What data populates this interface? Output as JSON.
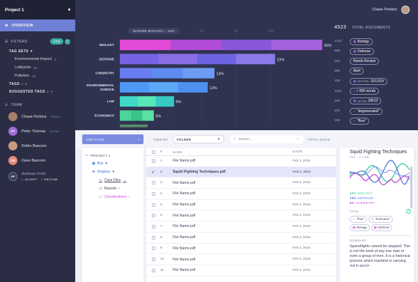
{
  "sidebar": {
    "project": "Project 1",
    "overview": "OVERVIEW",
    "filters": "FILTERS",
    "add": "ADD",
    "tag_sets": "TAG SETS",
    "tag_set_items": [
      {
        "label": "Environmental Impact",
        "count": "8"
      },
      {
        "label": "Lobbyists",
        "count": "23"
      },
      {
        "label": "Pollution",
        "count": "12"
      }
    ],
    "tags": "TAGS",
    "tags_count": "9",
    "suggested_tags": "SUGGESTED TAGS",
    "suggested_count": "9",
    "team": "TEAM",
    "members": [
      {
        "name": "Chase Perkins",
        "role": "ADMIN",
        "initials": "",
        "color": "#a87f69"
      },
      {
        "name": "Peter Thomas",
        "role": "ADMIN",
        "initials": "PT",
        "color": "#9d6cd4"
      },
      {
        "name": "Robin Bascom",
        "role": "",
        "initials": "",
        "color": "#c79a83"
      },
      {
        "name": "Dave Bascom",
        "role": "",
        "initials": "DB",
        "color": "#e3887a"
      }
    ],
    "pending": {
      "name": "Andreas Fruth",
      "initials": "AF",
      "accept": "ACCEPT",
      "decline": "DECLINE"
    }
  },
  "header": {
    "user": "Chase Perkins"
  },
  "chart_data": {
    "type": "bar",
    "breadcrumb": "MARINE BIOLOGY",
    "breadcrumb_pct": "15%",
    "categories": [
      "BIOLOGY",
      "DEFENSE",
      "CHEMISTRY",
      "ENVIRONMENTAL SCIENCE",
      "LAW",
      "ECONOMICS"
    ],
    "values": [
      30,
      23,
      14,
      13,
      8,
      5
    ],
    "value_labels": [
      "30%",
      "23%",
      "14%",
      "13%",
      "8%",
      "5%"
    ],
    "colors": [
      [
        "#e24bd8",
        "#b24cd8",
        "#8a56d9",
        "#a560dc"
      ],
      [
        "#7563e3",
        "#8b6ee6",
        "#6d63e0",
        "#8a79e8"
      ],
      [
        "#6a7cf1",
        "#5e8cf0",
        "#6b9cf2"
      ],
      [
        "#4f98f5",
        "#5aa8f6",
        "#4e8ff0"
      ],
      [
        "#3fd9c8",
        "#58e7b8",
        "#38c9c4"
      ],
      [
        "#4cd49c",
        "#39c58a",
        "#5de0a4"
      ]
    ],
    "grid_labels": [
      "20",
      "40",
      "60",
      "80",
      "100"
    ]
  },
  "docs": {
    "total": "4523",
    "label": "TOTAL DOCUMENTS",
    "rows": [
      {
        "n": "1124",
        "text": "Biology",
        "icon": "▦",
        "icon_class": ""
      },
      {
        "n": "868",
        "text": "Defense",
        "icon": "▦",
        "icon_class": ""
      },
      {
        "n": "652",
        "text": "Needs Review",
        "icon": "",
        "icon_class": ""
      },
      {
        "n": "980",
        "text": "Alert",
        "icon": "",
        "icon_class": ""
      },
      {
        "n": "108",
        "text": "11/12/14",
        "prefix": "BEFORE",
        "icon": "▦",
        "icon_class": "blue"
      },
      {
        "n": "1024",
        "text": "< 800 words",
        "icon": "≡",
        "icon_class": "blue"
      },
      {
        "n": "400",
        "text": "2/8/13",
        "prefix": "AFTER",
        "icon": "▦",
        "icon_class": "blue"
      },
      {
        "n": "402",
        "text": "\"degenerated\"",
        "icon": "✓",
        "icon_class": "teal"
      },
      {
        "n": "196",
        "text": "\"flow\"",
        "icon": "✓",
        "icon_class": "teal"
      }
    ]
  },
  "filterbar": {
    "add_files": "ADD FILES",
    "view_by": "VIEW BY",
    "view_by_value": "FOLDER",
    "search_placeholder": "Search...",
    "total_docs": "TOTAL DOCS"
  },
  "tree": {
    "root": "PROJECT 1",
    "items": [
      {
        "label": "Box",
        "indent": 1,
        "icon": "▣",
        "color": "#2f6fe0"
      },
      {
        "label": "Dropbox",
        "indent": 1,
        "icon": "❖",
        "color": "#2f6fe0"
      },
      {
        "label": "Case Files",
        "indent": 2,
        "icon": "▭",
        "color": "#3d3f57",
        "active": true
      },
      {
        "label": "Reports",
        "indent": 2,
        "icon": "▭",
        "color": "#3d3f57"
      },
      {
        "label": "Classifications",
        "indent": 2,
        "icon": "▭",
        "color": "#c94ddb"
      }
    ]
  },
  "table": {
    "col_num": "#",
    "col_name": "NAME",
    "col_date": "DATE",
    "rows": [
      {
        "n": "1",
        "name": "File Name.pdf",
        "date": "Feb 2, 2015",
        "checked": false
      },
      {
        "n": "2",
        "name": "Squid Fighting Techniques.pdf",
        "date": "Feb 2, 2015",
        "checked": true
      },
      {
        "n": "3",
        "name": "File Name.pdf",
        "date": "Feb 2, 2015",
        "checked": false
      },
      {
        "n": "4",
        "name": "File Name.pdf",
        "date": "Feb 2, 2015",
        "checked": false
      },
      {
        "n": "5",
        "name": "File Name.pdf",
        "date": "Feb 2, 2015",
        "checked": false
      },
      {
        "n": "6",
        "name": "File Name.pdf",
        "date": "Feb 2, 2015",
        "checked": false
      },
      {
        "n": "7",
        "name": "File Name.pdf",
        "date": "Feb 2, 2015",
        "checked": false
      },
      {
        "n": "8",
        "name": "File Name.pdf",
        "date": "Feb 2, 2015",
        "checked": false
      },
      {
        "n": "9",
        "name": "File Name.pdf",
        "date": "Feb 2, 2015",
        "checked": false
      },
      {
        "n": "10",
        "name": "File Name.pdf",
        "date": "Feb 2, 2015",
        "checked": false
      },
      {
        "n": "11",
        "name": "File Name.pdf",
        "date": "Feb 2, 2015",
        "checked": false
      }
    ]
  },
  "detail": {
    "title": "Squid Fighting Techniques",
    "meta": "PDF · 4.3 MB",
    "stats": [
      {
        "pct": "23%",
        "label": "BIOLOGY",
        "color": "#3fcf9a"
      },
      {
        "pct": "16%",
        "label": "DEFENSE",
        "color": "#5a79e6"
      },
      {
        "pct": "8%",
        "label": "CHEMISTRY",
        "color": "#c94ddb"
      }
    ],
    "tags_label": "TAGS",
    "tags": [
      {
        "text": "\"flow\"",
        "icon": "✓",
        "color": "#3fcf9a"
      },
      {
        "text": "\"hurricane\"",
        "icon": "⊘",
        "color": "#e59a4a"
      },
      {
        "text": "Biology",
        "icon": "▦",
        "color": "#c94ddb"
      },
      {
        "text": "Defense",
        "icon": "▦",
        "color": "#c94ddb"
      }
    ],
    "summary_label": "SUMMARY",
    "summary": "Spaceflights cannot be stopped. This is not the work of any one man or even a group of men. It is a historical process which mankind is carrying out in accor-"
  }
}
